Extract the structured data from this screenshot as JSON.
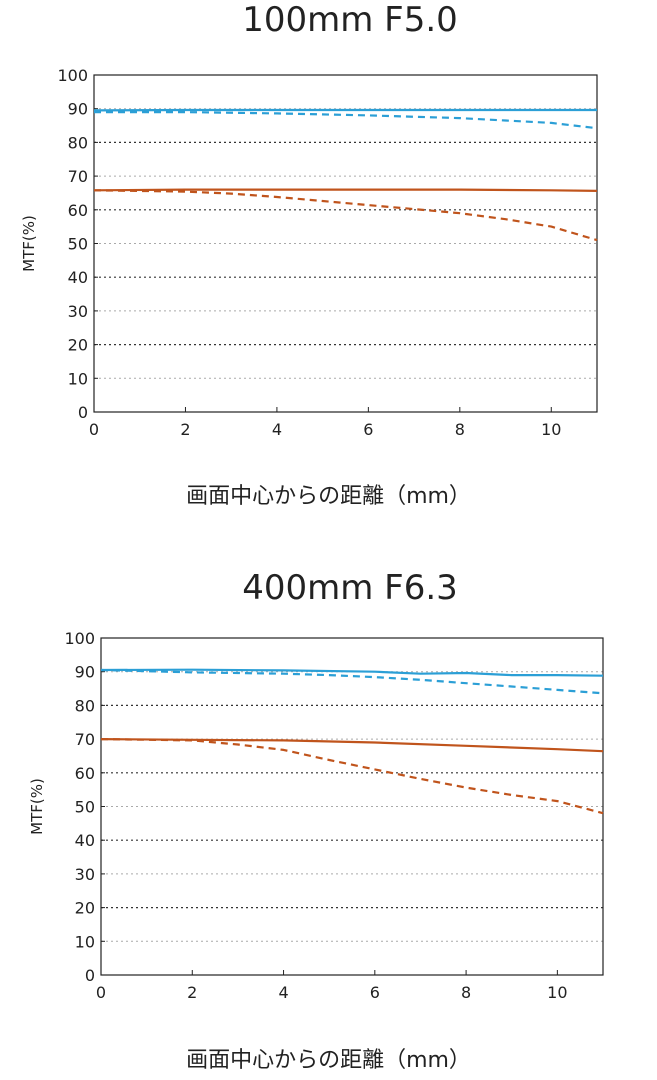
{
  "chart_data": [
    {
      "type": "line",
      "title": "100mm F5.0",
      "xlabel": "画面中心からの距離（mm）",
      "ylabel": "MTF(%)",
      "xlim": [
        0,
        11
      ],
      "ylim": [
        0,
        100
      ],
      "xticks": [
        0,
        2,
        4,
        6,
        8,
        10
      ],
      "yticks": [
        0,
        10,
        20,
        30,
        40,
        50,
        60,
        70,
        80,
        90,
        100
      ],
      "grid": true,
      "series": [
        {
          "color": "#2b9fd6",
          "dash": "solid",
          "x": [
            0,
            2,
            4,
            6,
            8,
            10,
            11
          ],
          "y": [
            89.5,
            89.6,
            89.6,
            89.6,
            89.6,
            89.6,
            89.6
          ]
        },
        {
          "color": "#2b9fd6",
          "dash": "dashed",
          "x": [
            0,
            2,
            4,
            6,
            8,
            9,
            10,
            11
          ],
          "y": [
            89,
            89,
            88.6,
            88,
            87.2,
            86.5,
            85.8,
            84.2
          ]
        },
        {
          "color": "#c0541c",
          "dash": "solid",
          "x": [
            0,
            2,
            4,
            6,
            8,
            10,
            11
          ],
          "y": [
            65.8,
            66,
            66,
            66,
            66,
            65.8,
            65.6
          ]
        },
        {
          "color": "#c0541c",
          "dash": "dashed",
          "x": [
            0,
            2,
            3,
            4,
            5,
            6,
            7,
            8,
            9,
            10,
            11
          ],
          "y": [
            65.8,
            65.4,
            64.8,
            63.8,
            62.6,
            61.4,
            60.2,
            59,
            57.2,
            55,
            51
          ]
        }
      ]
    },
    {
      "type": "line",
      "title": "400mm F6.3",
      "xlabel": "画面中心からの距離（mm）",
      "ylabel": "MTF(%)",
      "xlim": [
        0,
        11
      ],
      "ylim": [
        0,
        100
      ],
      "xticks": [
        0,
        2,
        4,
        6,
        8,
        10
      ],
      "yticks": [
        0,
        10,
        20,
        30,
        40,
        50,
        60,
        70,
        80,
        90,
        100
      ],
      "grid": true,
      "series": [
        {
          "color": "#2b9fd6",
          "dash": "solid",
          "x": [
            0,
            2,
            4,
            6,
            7,
            8,
            9,
            10,
            11
          ],
          "y": [
            90.5,
            90.6,
            90.4,
            90,
            89.4,
            89.6,
            89,
            89,
            88.8
          ]
        },
        {
          "color": "#2b9fd6",
          "dash": "dashed",
          "x": [
            0,
            2,
            3,
            4,
            5,
            6,
            7,
            8,
            9,
            10,
            11
          ],
          "y": [
            90.5,
            89.8,
            89.6,
            89.4,
            89,
            88.4,
            87.6,
            86.6,
            85.6,
            84.6,
            83.6
          ]
        },
        {
          "color": "#c0541c",
          "dash": "solid",
          "x": [
            0,
            2,
            4,
            6,
            8,
            10,
            11
          ],
          "y": [
            70,
            69.8,
            69.6,
            69,
            68,
            67,
            66.4
          ]
        },
        {
          "color": "#c0541c",
          "dash": "dashed",
          "x": [
            0,
            2,
            3,
            4,
            5,
            6,
            7,
            8,
            9,
            10,
            11
          ],
          "y": [
            70,
            69.6,
            68.4,
            66.8,
            63.8,
            61,
            58.2,
            55.6,
            53.4,
            51.6,
            48
          ]
        }
      ]
    }
  ]
}
